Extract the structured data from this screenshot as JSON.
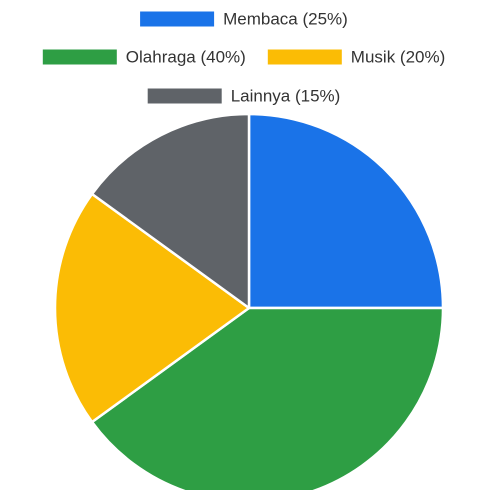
{
  "chart_data": {
    "type": "pie",
    "title": "",
    "legend_position": "top",
    "slices": [
      {
        "label": "Membaca (25%)",
        "value": 25,
        "color": "#1a73e8"
      },
      {
        "label": "Olahraga (40%)",
        "value": 40,
        "color": "#2e9e44"
      },
      {
        "label": "Musik (20%)",
        "value": 20,
        "color": "#fbbc05"
      },
      {
        "label": "Lainnya (15%)",
        "value": 15,
        "color": "#5f6368"
      }
    ]
  }
}
